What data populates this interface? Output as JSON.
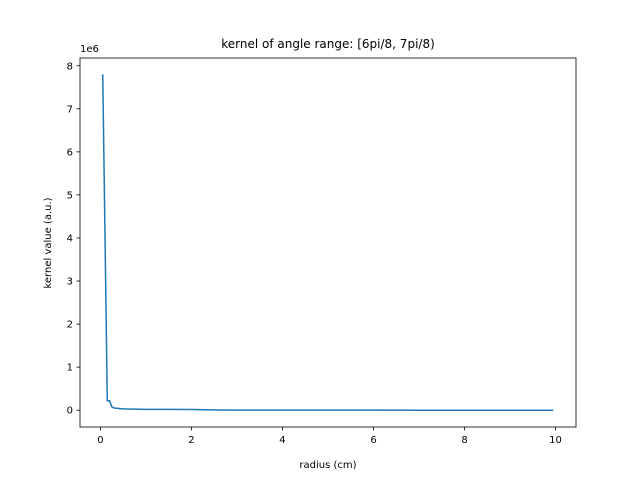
{
  "chart_data": {
    "type": "line",
    "title": "kernel of angle range: [6pi/8, 7pi/8)",
    "xlabel": "radius (cm)",
    "ylabel": "kernel value (a.u.)",
    "y_offset_label": "1e6",
    "xlim": [
      -0.45,
      10.45
    ],
    "ylim": [
      -0.39,
      8.18
    ],
    "y_scale_factor": 1000000,
    "grid": false,
    "xticks": [
      0,
      2,
      4,
      6,
      8,
      10
    ],
    "xtick_labels": [
      "0",
      "2",
      "4",
      "6",
      "8",
      "10"
    ],
    "yticks": [
      0,
      1,
      2,
      3,
      4,
      5,
      6,
      7,
      8
    ],
    "ytick_labels": [
      "0",
      "1",
      "2",
      "3",
      "4",
      "5",
      "6",
      "7",
      "8"
    ],
    "series": [
      {
        "color": "#1f77b4",
        "x": [
          0.05,
          0.15,
          0.2,
          0.25,
          0.3,
          0.4,
          0.5,
          0.75,
          1.0,
          1.5,
          2.0,
          2.3,
          2.6,
          3.0,
          4.0,
          5.0,
          6.0,
          7.0,
          8.0,
          9.0,
          9.95
        ],
        "y": [
          7.8,
          0.22,
          0.22,
          0.08,
          0.05,
          0.04,
          0.03,
          0.025,
          0.02,
          0.018,
          0.015,
          0.01,
          0.005,
          0.002,
          0.001,
          0.0008,
          0.0006,
          0.0005,
          0.0004,
          0.0003,
          0.0002
        ]
      }
    ]
  }
}
